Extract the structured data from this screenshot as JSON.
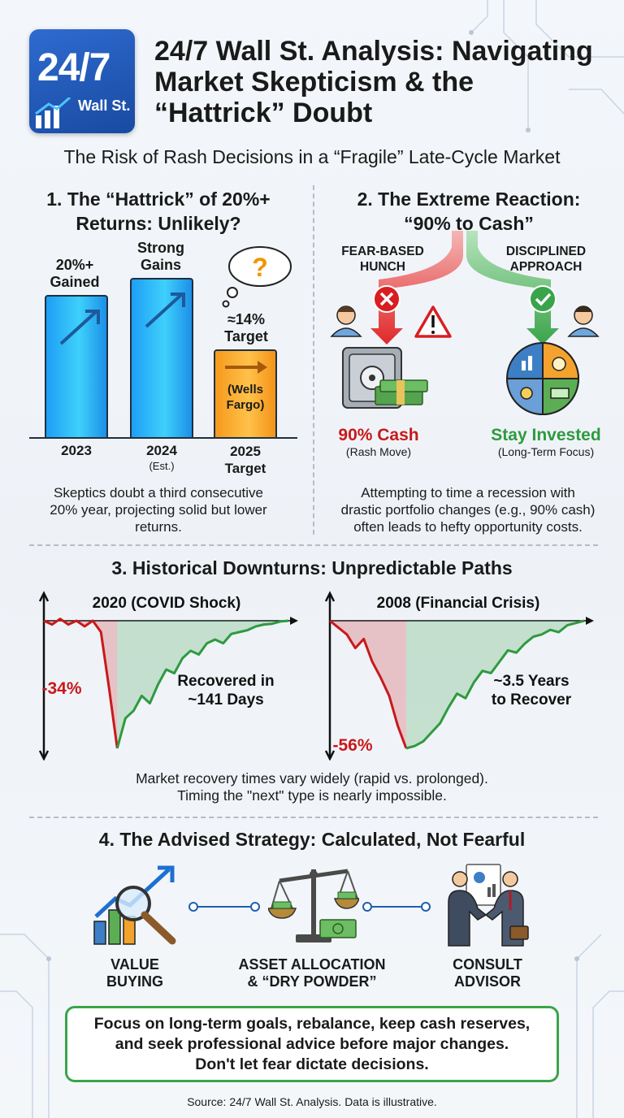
{
  "header": {
    "logo_main": "24/7",
    "logo_sub": "Wall St.",
    "title": "24/7 Wall St. Analysis: Navigating Market Skepticism & the “Hattrick” Doubt",
    "subtitle": "The Risk of Rash Decisions in a “Fragile” Late-Cycle Market"
  },
  "section1": {
    "title_line1": "1. The “Hattrick” of 20%+",
    "title_line2": "Returns: Unlikely?",
    "bar1_label_line1": "20%+",
    "bar1_label_line2": "Gained",
    "bar2_label_line1": "Strong",
    "bar2_label_line2": "Gains",
    "bar3_label_line1": "≈14%",
    "bar3_label_line2": "Target",
    "bar3_inner_line1": "(Wells",
    "bar3_inner_line2": "Fargo)",
    "question": "?",
    "x1": "2023",
    "x2": "2024",
    "x2_sub": "(Est.)",
    "x3_line1": "2025",
    "x3_line2": "Target",
    "note_line1": "Skeptics doubt a third consecutive",
    "note_line2": "20% year, projecting solid but lower",
    "note_line3": "returns."
  },
  "section2": {
    "title_line1": "2. The Extreme Reaction:",
    "title_line2": "“90% to Cash”",
    "left_label_line1": "FEAR-BASED",
    "left_label_line2": "HUNCH",
    "right_label_line1": "DISCIPLINED",
    "right_label_line2": "APPROACH",
    "left_result": "90% Cash",
    "left_result_sub": "(Rash Move)",
    "right_result": "Stay Invested",
    "right_result_sub": "(Long-Term Focus)",
    "note_line1": "Attempting to time a recession with",
    "note_line2": "drastic portfolio changes (e.g., 90% cash)",
    "note_line3": "often leads to hefty opportunity costs."
  },
  "section3": {
    "title": "3. Historical Downturns: Unpredictable Paths",
    "note_line1": "Market recovery times vary widely (rapid vs. prolonged).",
    "note_line2": "Timing the \"next\" type is nearly impossible."
  },
  "chart_data": [
    {
      "type": "line",
      "title": "2020 (COVID Shock)",
      "drawdown_label": "-34%",
      "recovery_label_line1": "Recovered in",
      "recovery_label_line2": "~141 Days",
      "x": [
        0,
        1,
        2,
        3,
        4,
        5,
        6,
        7,
        8,
        9,
        10,
        11,
        12,
        13,
        14,
        15,
        16,
        17,
        18,
        19,
        20,
        21,
        22,
        23,
        24,
        25,
        26,
        27,
        28,
        29,
        30
      ],
      "y": [
        0,
        -1,
        0.5,
        -1,
        0,
        -1.5,
        0,
        -3,
        -18,
        -34,
        -26,
        -24,
        -20,
        -22,
        -17,
        -13,
        -14,
        -10,
        -8,
        -9,
        -6,
        -5,
        -6,
        -3.5,
        -3,
        -2.5,
        -1.5,
        -1,
        -0.8,
        -0.2,
        0
      ],
      "colors": {
        "decline": "#c8191a",
        "recovery": "#2e9a3e"
      }
    },
    {
      "type": "line",
      "title": "2008 (Financial Crisis)",
      "drawdown_label": "-56%",
      "recovery_label_line1": "~3.5 Years",
      "recovery_label_line2": "to Recover",
      "x": [
        0,
        1,
        2,
        3,
        4,
        5,
        6,
        7,
        8,
        9,
        10,
        11,
        12,
        13,
        14,
        15,
        16,
        17,
        18,
        19,
        20,
        21,
        22,
        23,
        24,
        25,
        26,
        27,
        28,
        29,
        30
      ],
      "y": [
        0,
        -3,
        -6,
        -12,
        -8,
        -18,
        -25,
        -33,
        -46,
        -56,
        -55,
        -53,
        -49,
        -45,
        -38,
        -32,
        -34,
        -27,
        -22,
        -23,
        -18,
        -13,
        -14,
        -10,
        -7,
        -6,
        -4,
        -5,
        -2,
        -1,
        0
      ],
      "colors": {
        "decline": "#c8191a",
        "recovery": "#2e9a3e"
      }
    }
  ],
  "section4": {
    "title": "4. The Advised Strategy: Calculated, Not Fearful",
    "step1_line1": "VALUE",
    "step1_line2": "BUYING",
    "step2_line1": "ASSET ALLOCATION",
    "step2_line2": "& “DRY POWDER”",
    "step3_line1": "CONSULT",
    "step3_line2": "ADVISOR",
    "advice_line1": "Focus on long-term goals, rebalance, keep cash reserves,",
    "advice_line2": "and seek professional advice before major changes.",
    "advice_line3": "Don't let fear dictate decisions."
  },
  "source": "Source: 24/7 Wall St. Analysis. Data is illustrative."
}
